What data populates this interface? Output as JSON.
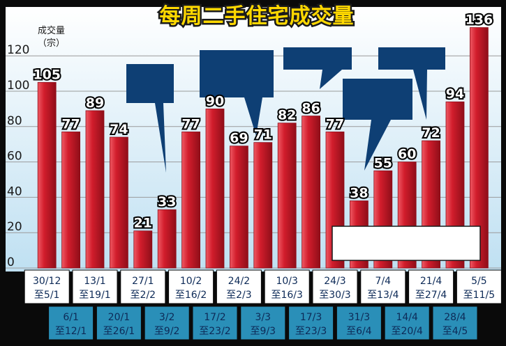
{
  "chart_data": {
    "type": "bar",
    "title": "每周二手住宅成交量",
    "ylabel_line1": "成交量",
    "ylabel_line2": "（宗）",
    "ylim": [
      0,
      150
    ],
    "yticks": [
      "0",
      "20",
      "40",
      "60",
      "80",
      "100",
      "120"
    ],
    "grid": true,
    "categories": [
      {
        "line1": "30/12",
        "line2": "至5/1"
      },
      {
        "line1": "6/1",
        "line2": "至12/1"
      },
      {
        "line1": "13/1",
        "line2": "至19/1"
      },
      {
        "line1": "20/1",
        "line2": "至26/1"
      },
      {
        "line1": "27/1",
        "line2": "至2/2"
      },
      {
        "line1": "3/2",
        "line2": "至9/2"
      },
      {
        "line1": "10/2",
        "line2": "至16/2"
      },
      {
        "line1": "17/2",
        "line2": "至23/2"
      },
      {
        "line1": "24/2",
        "line2": "至2/3"
      },
      {
        "line1": "3/3",
        "line2": "至9/3"
      },
      {
        "line1": "10/3",
        "line2": "至16/3"
      },
      {
        "line1": "17/3",
        "line2": "至23/3"
      },
      {
        "line1": "24/3",
        "line2": "至30/3"
      },
      {
        "line1": "31/3",
        "line2": "至6/4"
      },
      {
        "line1": "7/4",
        "line2": "至13/4"
      },
      {
        "line1": "14/4",
        "line2": "至20/4"
      },
      {
        "line1": "21/4",
        "line2": "至27/4"
      },
      {
        "line1": "28/4",
        "line2": "至4/5"
      },
      {
        "line1": "5/5",
        "line2": "至11/5"
      }
    ],
    "values": [
      105,
      77,
      89,
      74,
      21,
      33,
      77,
      90,
      69,
      71,
      82,
      86,
      77,
      38,
      55,
      60,
      72,
      94,
      136
    ],
    "value_labels": [
      "105",
      "77",
      "89",
      "74",
      "21",
      "33",
      "77",
      "90",
      "69",
      "71",
      "82",
      "86",
      "77",
      "38",
      "55",
      "60",
      "72",
      "94",
      "136"
    ]
  },
  "colors": {
    "background": "#0a0a0a",
    "plot_top": "#ffffff",
    "plot_bottom": "#bfe0f2",
    "bar": "#d21d2c",
    "bar_light": "#ef5a64",
    "bar_dark": "#8f0e19",
    "callout": "#0e3f74",
    "date_row1": "#ffffff",
    "date_row2": "#2a8fb8",
    "title": "#ffd800"
  }
}
